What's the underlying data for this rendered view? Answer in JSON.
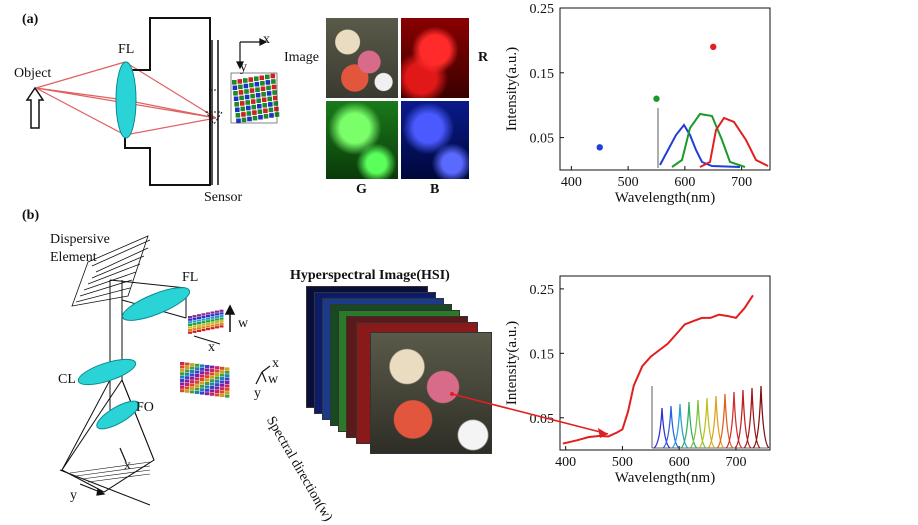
{
  "panel_a": {
    "label": "(a)",
    "object": "Object",
    "fl": "FL",
    "sensor": "Sensor",
    "axis_x": "x",
    "axis_y": "y",
    "image": "Image",
    "r": "R",
    "g": "G",
    "b": "B"
  },
  "panel_b": {
    "label": "(b)",
    "dispersive": "Dispersive",
    "element": "Element",
    "fl": "FL",
    "cl": "CL",
    "fo": "FO",
    "w": "w",
    "x": "x",
    "y": "y",
    "hsi_title": "Hyperspectral Image(HSI)",
    "spectral_direction": "Spectral direction(w)"
  },
  "chart_data": [
    {
      "type": "scatter",
      "xlabel": "Wavelength(nm)",
      "ylabel": "Intensity(a.u.)",
      "x_ticks": [
        "400",
        "500",
        "600",
        "700"
      ],
      "y_ticks": [
        "0.25",
        "0.15",
        "0.05"
      ],
      "xlim": [
        380,
        750
      ],
      "ylim": [
        0,
        0.25
      ],
      "points": [
        {
          "x": 450,
          "y": 0.035,
          "color": "#1f3fd6"
        },
        {
          "x": 550,
          "y": 0.11,
          "color": "#1a9a2a"
        },
        {
          "x": 650,
          "y": 0.19,
          "color": "#e02020"
        }
      ],
      "inset": "RGB filter response curves (blue, green, red)"
    },
    {
      "type": "line",
      "xlabel": "Wavelength(nm)",
      "ylabel": "Intensity(a.u.)",
      "x_ticks": [
        "400",
        "500",
        "600",
        "700"
      ],
      "y_ticks": [
        "0.25",
        "0.15",
        "0.05"
      ],
      "xlim": [
        390,
        760
      ],
      "ylim": [
        0,
        0.27
      ],
      "series": [
        {
          "color": "#e02020",
          "x": [
            395,
            420,
            440,
            460,
            475,
            490,
            500,
            510,
            520,
            535,
            550,
            565,
            580,
            595,
            610,
            625,
            640,
            655,
            670,
            685,
            700,
            715,
            730
          ],
          "y": [
            0.01,
            0.015,
            0.02,
            0.022,
            0.021,
            0.027,
            0.032,
            0.06,
            0.1,
            0.13,
            0.145,
            0.155,
            0.165,
            0.18,
            0.195,
            0.2,
            0.205,
            0.205,
            0.21,
            0.208,
            0.205,
            0.22,
            0.24
          ]
        }
      ],
      "inset": "narrowband spectral channel responses"
    }
  ]
}
